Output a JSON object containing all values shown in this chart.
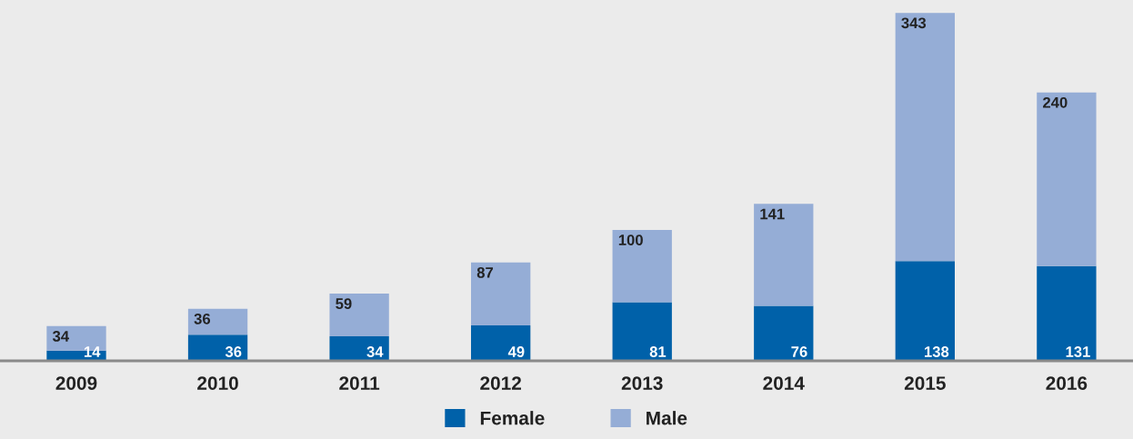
{
  "chart_data": {
    "type": "bar",
    "stacked": true,
    "categories": [
      "2009",
      "2010",
      "2011",
      "2012",
      "2013",
      "2014",
      "2015",
      "2016"
    ],
    "series": [
      {
        "name": "Female",
        "color": "#0061a9",
        "values": [
          14,
          36,
          34,
          49,
          81,
          76,
          138,
          131
        ]
      },
      {
        "name": "Male",
        "color": "#95add6",
        "values": [
          34,
          36,
          59,
          87,
          100,
          141,
          343,
          240
        ]
      }
    ],
    "data_labels": true,
    "legend": "bottom",
    "grid": false
  }
}
